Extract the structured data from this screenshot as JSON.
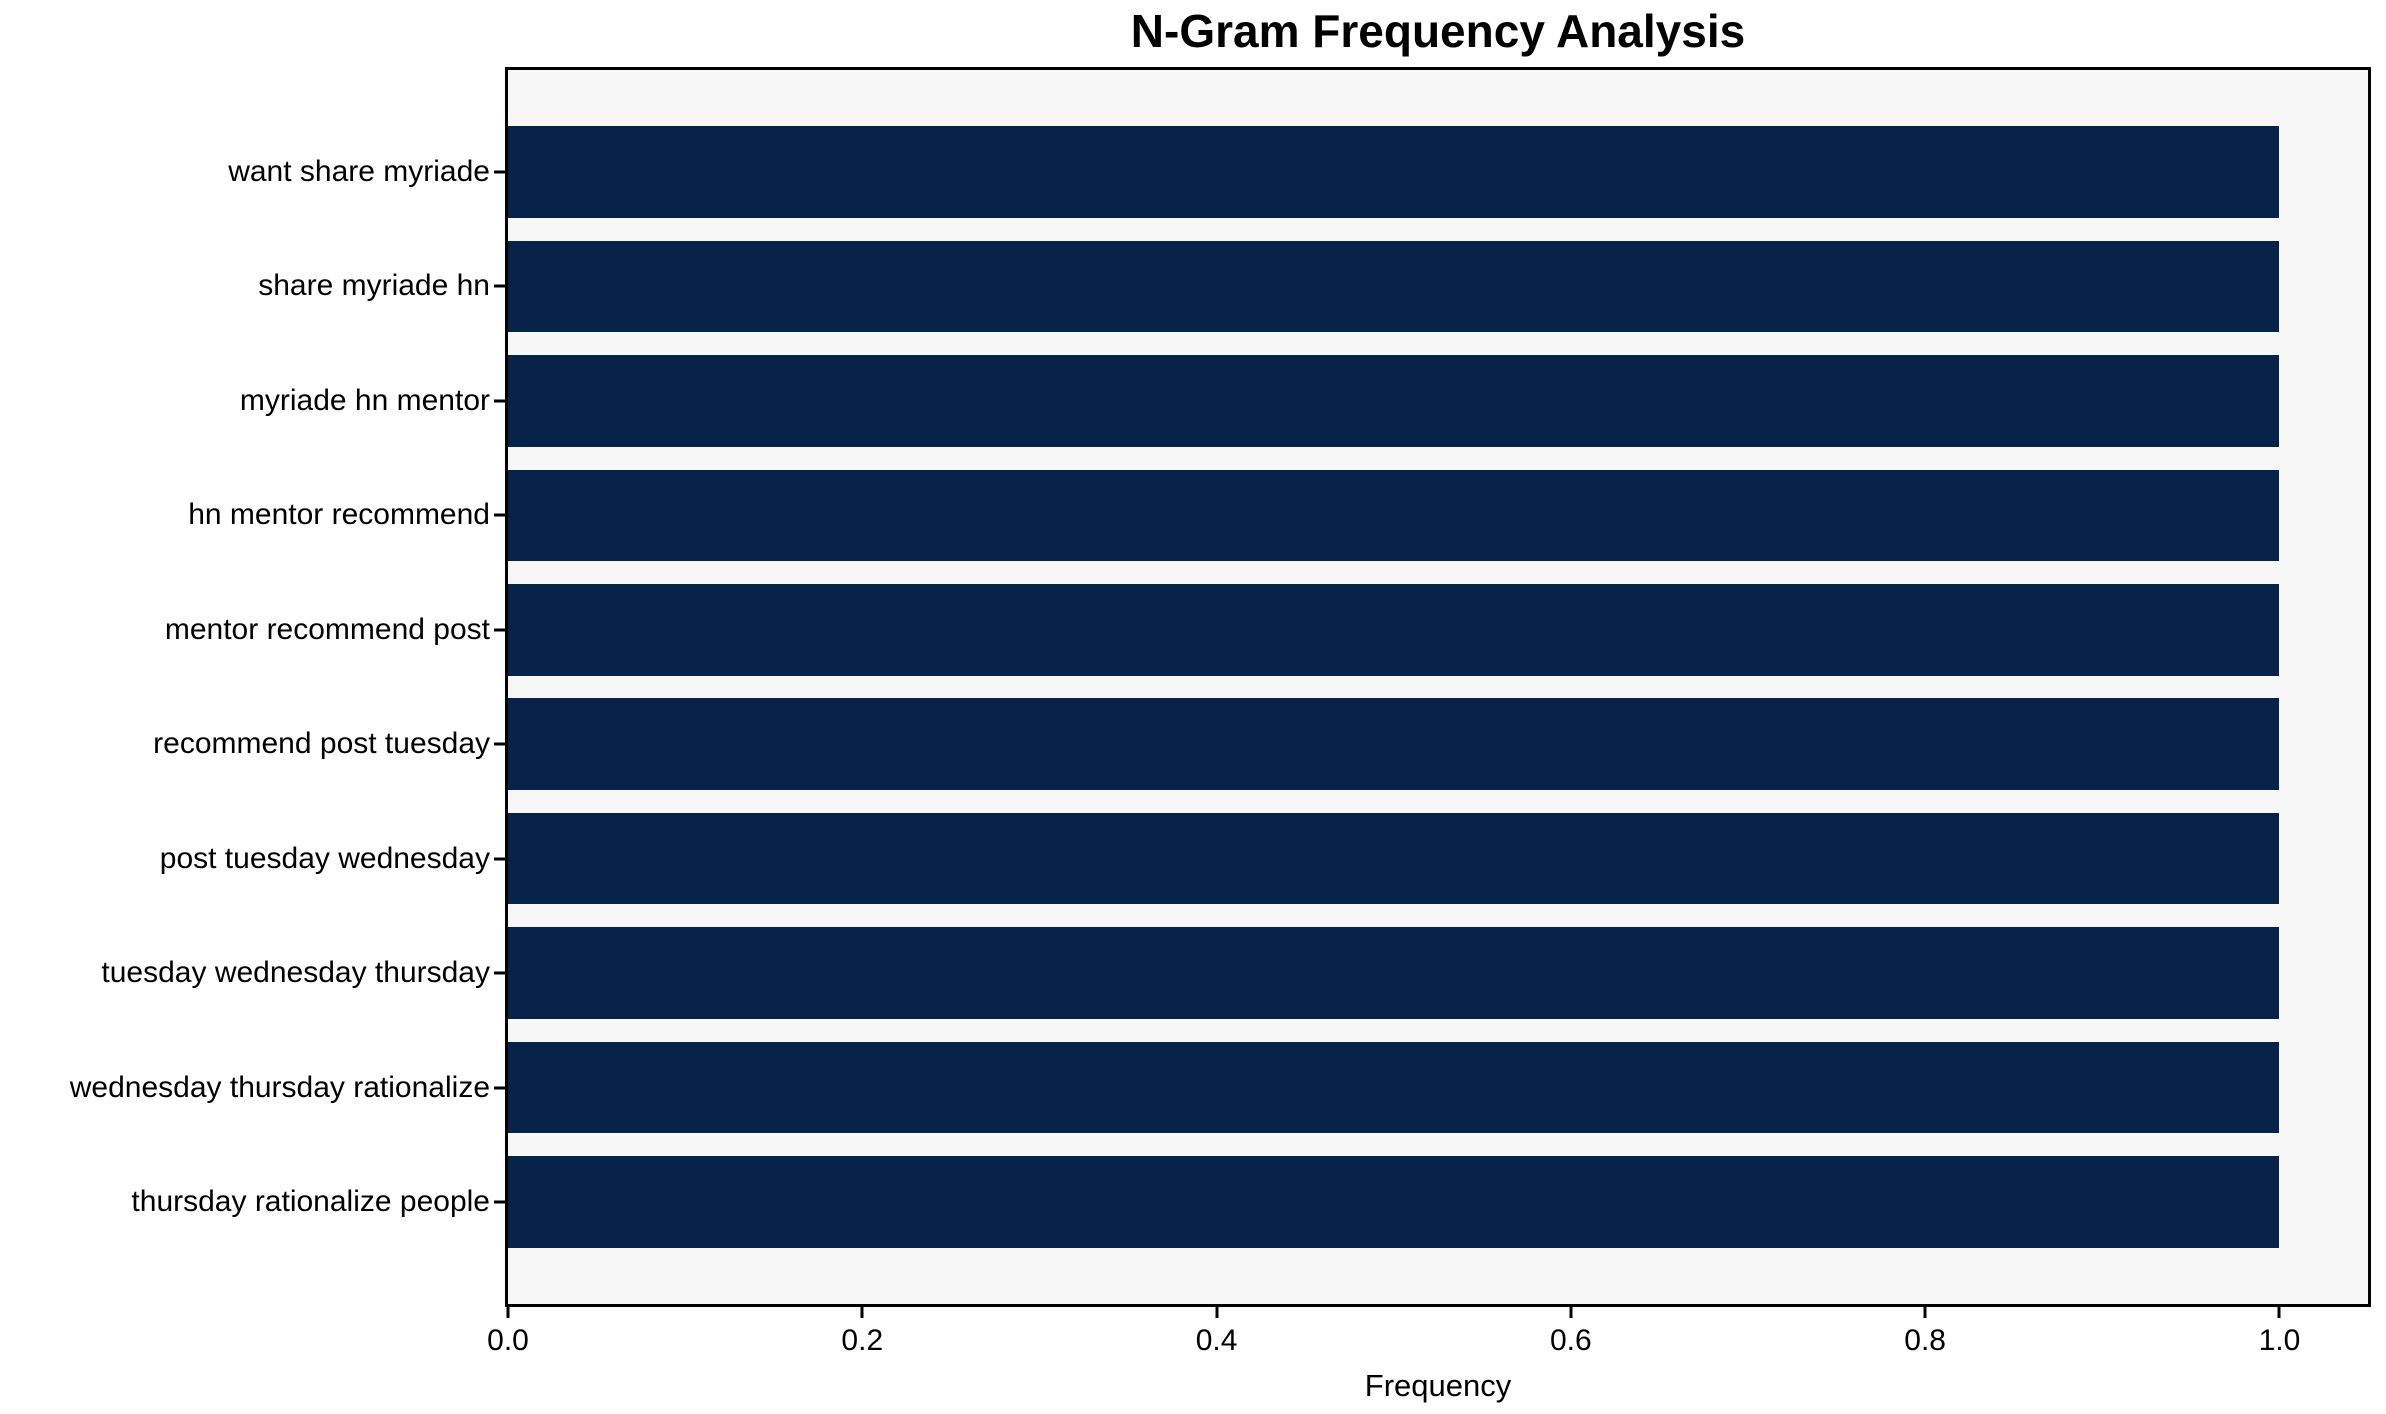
{
  "chart_data": {
    "type": "bar",
    "orientation": "horizontal",
    "title": "N-Gram Frequency Analysis",
    "xlabel": "Frequency",
    "ylabel": "",
    "categories": [
      "want share myriade",
      "share myriade hn",
      "myriade hn mentor",
      "hn mentor recommend",
      "mentor recommend post",
      "recommend post tuesday",
      "post tuesday wednesday",
      "tuesday wednesday thursday",
      "wednesday thursday rationalize",
      "thursday rationalize people"
    ],
    "values": [
      1.0,
      1.0,
      1.0,
      1.0,
      1.0,
      1.0,
      1.0,
      1.0,
      1.0,
      1.0
    ],
    "xlim": [
      0,
      1.05
    ],
    "xticks": [
      0.0,
      0.2,
      0.4,
      0.6,
      0.8,
      1.0
    ],
    "xtick_labels": [
      "0.0",
      "0.2",
      "0.4",
      "0.6",
      "0.8",
      "1.0"
    ],
    "grid": false,
    "legend": "none",
    "colors": {
      "bar": "#08234a",
      "plot_background": "#f7f7f7",
      "figure_background": "#ffffff",
      "spine": "#000000",
      "text": "#000000"
    }
  }
}
